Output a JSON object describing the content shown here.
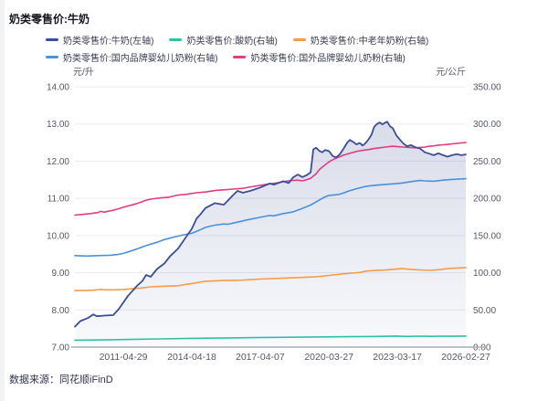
{
  "footer": {
    "source_label": "数据来源：同花顺iFinD"
  },
  "chart_data": {
    "type": "line",
    "title": "奶类零售价:牛奶",
    "legend_position": "top",
    "grid": true,
    "left_axis": {
      "unit": "元/升",
      "min": 7,
      "max": 14,
      "tick_labels": [
        "14.00",
        "13.00",
        "12.00",
        "11.00",
        "10.00",
        "9.00",
        "8.00",
        "7.00"
      ]
    },
    "right_axis": {
      "unit": "元/公斤",
      "min": 0,
      "max": 350,
      "tick_labels": [
        "350.00",
        "300.00",
        "250.00",
        "200.00",
        "150.00",
        "100.00",
        "50.00",
        "0.00"
      ]
    },
    "x_axis": {
      "tick_labels": [
        {
          "label": "2011-04-29",
          "t": 0.124
        },
        {
          "label": "2014-04-18",
          "t": 0.299
        },
        {
          "label": "2017-04-07",
          "t": 0.474
        },
        {
          "label": "2020-03-27",
          "t": 0.65
        },
        {
          "label": "2023-03-17",
          "t": 0.825
        },
        {
          "label": "2026-02-27",
          "t": 1.0
        }
      ]
    },
    "series": [
      {
        "name": "奶类零售价:牛奶(左轴)",
        "axis": "left",
        "color": "#3d4f94",
        "area": true,
        "points": [
          [
            0,
            7.55
          ],
          [
            0.014,
            7.7
          ],
          [
            0.033,
            7.78
          ],
          [
            0.047,
            7.88
          ],
          [
            0.056,
            7.83
          ],
          [
            0.079,
            7.85
          ],
          [
            0.098,
            7.86
          ],
          [
            0.112,
            8.02
          ],
          [
            0.136,
            8.38
          ],
          [
            0.159,
            8.65
          ],
          [
            0.173,
            8.78
          ],
          [
            0.182,
            8.94
          ],
          [
            0.194,
            8.89
          ],
          [
            0.21,
            9.1
          ],
          [
            0.229,
            9.25
          ],
          [
            0.243,
            9.44
          ],
          [
            0.264,
            9.65
          ],
          [
            0.287,
            10.0
          ],
          [
            0.299,
            10.18
          ],
          [
            0.311,
            10.45
          ],
          [
            0.322,
            10.58
          ],
          [
            0.334,
            10.74
          ],
          [
            0.358,
            10.87
          ],
          [
            0.381,
            10.83
          ],
          [
            0.404,
            11.08
          ],
          [
            0.416,
            11.2
          ],
          [
            0.43,
            11.15
          ],
          [
            0.451,
            11.21
          ],
          [
            0.474,
            11.29
          ],
          [
            0.498,
            11.4
          ],
          [
            0.509,
            11.37
          ],
          [
            0.533,
            11.46
          ],
          [
            0.547,
            11.41
          ],
          [
            0.558,
            11.56
          ],
          [
            0.57,
            11.64
          ],
          [
            0.582,
            11.57
          ],
          [
            0.594,
            11.63
          ],
          [
            0.603,
            11.7
          ],
          [
            0.61,
            12.32
          ],
          [
            0.617,
            12.36
          ],
          [
            0.626,
            12.27
          ],
          [
            0.633,
            12.24
          ],
          [
            0.64,
            12.3
          ],
          [
            0.65,
            12.27
          ],
          [
            0.659,
            12.14
          ],
          [
            0.668,
            12.1
          ],
          [
            0.678,
            12.19
          ],
          [
            0.687,
            12.33
          ],
          [
            0.696,
            12.49
          ],
          [
            0.703,
            12.57
          ],
          [
            0.713,
            12.51
          ],
          [
            0.72,
            12.45
          ],
          [
            0.729,
            12.49
          ],
          [
            0.736,
            12.42
          ],
          [
            0.743,
            12.48
          ],
          [
            0.752,
            12.6
          ],
          [
            0.759,
            12.72
          ],
          [
            0.766,
            12.93
          ],
          [
            0.773,
            13.0
          ],
          [
            0.78,
            13.04
          ],
          [
            0.787,
            12.99
          ],
          [
            0.794,
            13.04
          ],
          [
            0.799,
            13.06
          ],
          [
            0.806,
            12.94
          ],
          [
            0.813,
            12.89
          ],
          [
            0.822,
            12.7
          ],
          [
            0.832,
            12.57
          ],
          [
            0.841,
            12.47
          ],
          [
            0.85,
            12.4
          ],
          [
            0.86,
            12.43
          ],
          [
            0.872,
            12.37
          ],
          [
            0.883,
            12.34
          ],
          [
            0.895,
            12.24
          ],
          [
            0.907,
            12.2
          ],
          [
            0.918,
            12.16
          ],
          [
            0.93,
            12.21
          ],
          [
            0.942,
            12.16
          ],
          [
            0.953,
            12.12
          ],
          [
            0.965,
            12.16
          ],
          [
            0.977,
            12.19
          ],
          [
            0.988,
            12.16
          ],
          [
            1,
            12.18
          ]
        ]
      },
      {
        "name": "奶类零售价:酸奶(右轴)",
        "axis": "right",
        "color": "#2fc1a5",
        "area": false,
        "points": [
          [
            0,
            9.3
          ],
          [
            0.05,
            9.6
          ],
          [
            0.1,
            10.0
          ],
          [
            0.16,
            10.5
          ],
          [
            0.22,
            11.0
          ],
          [
            0.28,
            11.5
          ],
          [
            0.34,
            12.0
          ],
          [
            0.4,
            12.4
          ],
          [
            0.46,
            12.8
          ],
          [
            0.52,
            13.1
          ],
          [
            0.58,
            13.4
          ],
          [
            0.64,
            13.7
          ],
          [
            0.7,
            14.0
          ],
          [
            0.75,
            14.2
          ],
          [
            0.79,
            14.5
          ],
          [
            0.82,
            14.8
          ],
          [
            0.85,
            14.4
          ],
          [
            0.88,
            14.7
          ],
          [
            0.91,
            14.5
          ],
          [
            0.94,
            14.7
          ],
          [
            0.97,
            14.6
          ],
          [
            1,
            14.8
          ]
        ]
      },
      {
        "name": "奶类零售价:中老年奶粉(右轴)",
        "axis": "right",
        "color": "#f49d49",
        "area": false,
        "points": [
          [
            0,
            76
          ],
          [
            0.023,
            76
          ],
          [
            0.047,
            76.5
          ],
          [
            0.065,
            77.5
          ],
          [
            0.084,
            77
          ],
          [
            0.103,
            77
          ],
          [
            0.124,
            77.5
          ],
          [
            0.147,
            78.5
          ],
          [
            0.17,
            79.5
          ],
          [
            0.194,
            81
          ],
          [
            0.217,
            81.5
          ],
          [
            0.24,
            82
          ],
          [
            0.264,
            82.5
          ],
          [
            0.275,
            83.5
          ],
          [
            0.287,
            84.5
          ],
          [
            0.299,
            85.5
          ],
          [
            0.311,
            86.5
          ],
          [
            0.334,
            88.5
          ],
          [
            0.381,
            89.5
          ],
          [
            0.428,
            90
          ],
          [
            0.474,
            91.5
          ],
          [
            0.52,
            92.5
          ],
          [
            0.568,
            93.5
          ],
          [
            0.615,
            94.5
          ],
          [
            0.638,
            95.5
          ],
          [
            0.66,
            97
          ],
          [
            0.685,
            98.5
          ],
          [
            0.708,
            99.5
          ],
          [
            0.731,
            100.5
          ],
          [
            0.743,
            102
          ],
          [
            0.766,
            103
          ],
          [
            0.79,
            103.5
          ],
          [
            0.813,
            104.5
          ],
          [
            0.836,
            105.5
          ],
          [
            0.86,
            104.5
          ],
          [
            0.883,
            103.8
          ],
          [
            0.907,
            103.2
          ],
          [
            0.93,
            104
          ],
          [
            0.953,
            105.5
          ],
          [
            0.977,
            106.3
          ],
          [
            1,
            106.9
          ]
        ]
      },
      {
        "name": "奶类零售价:国内品牌婴幼儿奶粉(右轴)",
        "axis": "right",
        "color": "#4b90d9",
        "area": false,
        "points": [
          [
            0,
            123
          ],
          [
            0.03,
            122.5
          ],
          [
            0.06,
            123
          ],
          [
            0.09,
            123.5
          ],
          [
            0.11,
            124.5
          ],
          [
            0.124,
            126
          ],
          [
            0.136,
            128
          ],
          [
            0.159,
            132
          ],
          [
            0.182,
            136.5
          ],
          [
            0.21,
            141
          ],
          [
            0.229,
            144.5
          ],
          [
            0.25,
            147.5
          ],
          [
            0.275,
            150.5
          ],
          [
            0.299,
            153
          ],
          [
            0.311,
            155.5
          ],
          [
            0.322,
            158
          ],
          [
            0.334,
            161
          ],
          [
            0.358,
            164
          ],
          [
            0.381,
            165.5
          ],
          [
            0.39,
            165
          ],
          [
            0.416,
            168
          ],
          [
            0.44,
            171
          ],
          [
            0.474,
            174.5
          ],
          [
            0.498,
            177
          ],
          [
            0.509,
            176.5
          ],
          [
            0.533,
            179.5
          ],
          [
            0.556,
            181.5
          ],
          [
            0.58,
            186
          ],
          [
            0.603,
            191
          ],
          [
            0.626,
            198
          ],
          [
            0.64,
            202
          ],
          [
            0.65,
            204
          ],
          [
            0.673,
            205
          ],
          [
            0.687,
            207
          ],
          [
            0.696,
            209
          ],
          [
            0.72,
            213
          ],
          [
            0.743,
            216
          ],
          [
            0.766,
            217.5
          ],
          [
            0.79,
            218.5
          ],
          [
            0.813,
            219.5
          ],
          [
            0.836,
            220.5
          ],
          [
            0.86,
            222.5
          ],
          [
            0.883,
            224
          ],
          [
            0.895,
            223.5
          ],
          [
            0.918,
            223
          ],
          [
            0.942,
            224.5
          ],
          [
            0.965,
            225.5
          ],
          [
            1,
            226.5
          ]
        ]
      },
      {
        "name": "奶类零售价:国外品牌婴幼儿奶粉(右轴)",
        "axis": "right",
        "color": "#e03d80",
        "area": false,
        "points": [
          [
            0,
            177.5
          ],
          [
            0.02,
            178.5
          ],
          [
            0.04,
            179.5
          ],
          [
            0.06,
            181
          ],
          [
            0.065,
            182.5
          ],
          [
            0.075,
            181.5
          ],
          [
            0.098,
            184
          ],
          [
            0.112,
            186
          ],
          [
            0.124,
            188
          ],
          [
            0.159,
            193
          ],
          [
            0.182,
            197.5
          ],
          [
            0.194,
            199
          ],
          [
            0.217,
            200.5
          ],
          [
            0.24,
            201.5
          ],
          [
            0.264,
            204.5
          ],
          [
            0.287,
            205.5
          ],
          [
            0.311,
            207.5
          ],
          [
            0.334,
            208.5
          ],
          [
            0.358,
            210.5
          ],
          [
            0.381,
            211.5
          ],
          [
            0.404,
            212.5
          ],
          [
            0.43,
            213.5
          ],
          [
            0.451,
            215.5
          ],
          [
            0.474,
            217.5
          ],
          [
            0.498,
            219.5
          ],
          [
            0.52,
            221
          ],
          [
            0.545,
            223.5
          ],
          [
            0.57,
            224.5
          ],
          [
            0.582,
            223.5
          ],
          [
            0.592,
            225
          ],
          [
            0.603,
            227
          ],
          [
            0.617,
            233
          ],
          [
            0.626,
            239
          ],
          [
            0.64,
            245
          ],
          [
            0.65,
            249
          ],
          [
            0.66,
            252
          ],
          [
            0.673,
            255
          ],
          [
            0.687,
            258
          ],
          [
            0.703,
            260.5
          ],
          [
            0.72,
            263
          ],
          [
            0.736,
            264.5
          ],
          [
            0.75,
            265.5
          ],
          [
            0.766,
            267
          ],
          [
            0.78,
            268
          ],
          [
            0.794,
            269
          ],
          [
            0.813,
            270
          ],
          [
            0.825,
            269.5
          ],
          [
            0.84,
            269
          ],
          [
            0.855,
            268.5
          ],
          [
            0.872,
            268
          ],
          [
            0.883,
            268.5
          ],
          [
            0.895,
            269
          ],
          [
            0.907,
            270
          ],
          [
            0.918,
            270.5
          ],
          [
            0.93,
            271.5
          ],
          [
            0.942,
            272
          ],
          [
            0.953,
            272.5
          ],
          [
            0.965,
            273.2
          ],
          [
            0.977,
            274
          ],
          [
            0.988,
            274.5
          ],
          [
            1,
            275
          ]
        ]
      }
    ]
  }
}
